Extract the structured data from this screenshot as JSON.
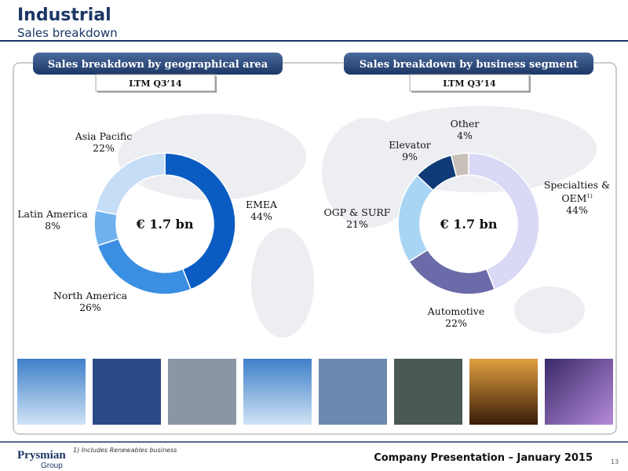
{
  "header": {
    "title": "Industrial",
    "subtitle": "Sales breakdown"
  },
  "chart_data": [
    {
      "type": "donut",
      "title": "Sales breakdown by geographical area",
      "subtitle": "LTM Q3’14",
      "center_label": "€ 1.7 bn",
      "categories": [
        "EMEA",
        "North America",
        "Latin America",
        "Asia Pacific"
      ],
      "values": [
        44,
        26,
        8,
        22
      ],
      "value_labels": [
        "44%",
        "26%",
        "8%",
        "22%"
      ],
      "colors": [
        "#0b5cc2",
        "#3b8fe2",
        "#6fb2ee",
        "#c6ddf6"
      ]
    },
    {
      "type": "donut",
      "title": "Sales breakdown by business segment",
      "subtitle": "LTM Q3’14",
      "center_label": "€ 1.7 bn",
      "categories": [
        "Specialties & OEM",
        "Automotive",
        "OGP & SURF",
        "Elevator",
        "Other"
      ],
      "note_marks": [
        "1)",
        null,
        null,
        null,
        null
      ],
      "values": [
        44,
        22,
        21,
        9,
        4
      ],
      "value_labels": [
        "44%",
        "22%",
        "21%",
        "9%",
        "4%"
      ],
      "colors": [
        "#d9d9f5",
        "#6b6ba9",
        "#a9d5f5",
        "#0e3b78",
        "#c9c1b9"
      ]
    }
  ],
  "footnote": "1) Includes Renewables business",
  "footer": {
    "logo": "Prysmian",
    "logo_sub": "Group",
    "presentation": "Company Presentation – January 2015",
    "page": "13"
  }
}
